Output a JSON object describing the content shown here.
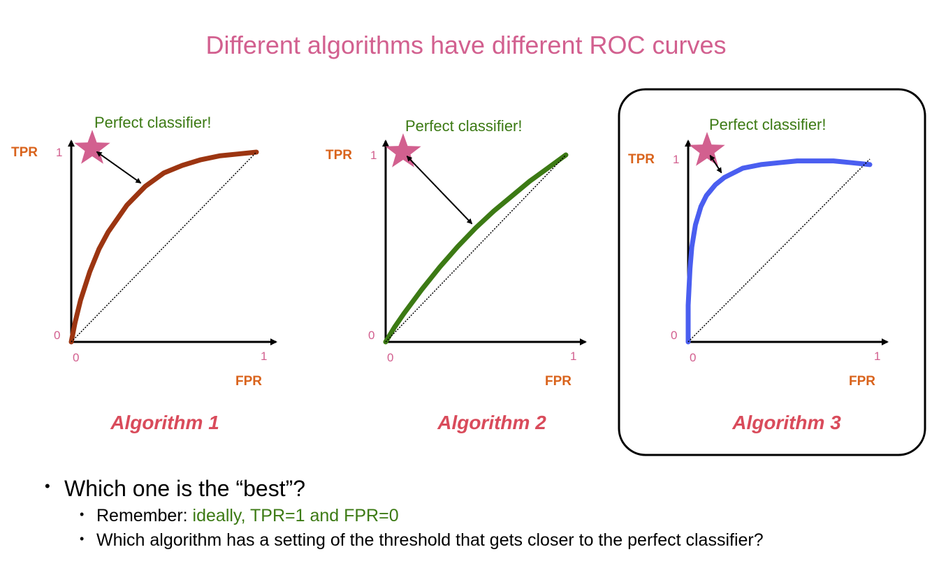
{
  "title": "Different algorithms have different ROC curves",
  "colors": {
    "title": "#d2608f",
    "axis_name": "#d9631c",
    "ticks": "#d2608f",
    "annotation": "#3c7a14",
    "caption": "#d94b5b",
    "star": "#d2608f"
  },
  "chart_data": [
    {
      "type": "line",
      "title": "Algorithm 1",
      "xlabel": "FPR",
      "ylabel": "TPR",
      "xlim": [
        0,
        1
      ],
      "ylim": [
        0,
        1
      ],
      "x_ticks": [
        "0",
        "1"
      ],
      "y_ticks": [
        "0",
        "1"
      ],
      "annotation": "Perfect classifier!",
      "highlighted": false,
      "series": [
        {
          "color": "#9c3511",
          "x": [
            0,
            0.02,
            0.05,
            0.1,
            0.15,
            0.2,
            0.3,
            0.4,
            0.5,
            0.6,
            0.7,
            0.8,
            0.9,
            1.0
          ],
          "y": [
            0,
            0.1,
            0.22,
            0.37,
            0.49,
            0.58,
            0.72,
            0.82,
            0.89,
            0.93,
            0.96,
            0.98,
            0.99,
            1.0
          ]
        },
        {
          "style": "dotted",
          "color": "#000000",
          "x": [
            0,
            1
          ],
          "y": [
            0,
            1
          ]
        }
      ]
    },
    {
      "type": "line",
      "title": "Algorithm 2",
      "xlabel": "FPR",
      "ylabel": "TPR",
      "xlim": [
        0,
        1
      ],
      "ylim": [
        0,
        1
      ],
      "x_ticks": [
        "0",
        "1"
      ],
      "y_ticks": [
        "0",
        "1"
      ],
      "annotation": "Perfect classifier!",
      "highlighted": false,
      "series": [
        {
          "color": "#3c7a14",
          "x": [
            0,
            0.05,
            0.1,
            0.2,
            0.3,
            0.4,
            0.5,
            0.6,
            0.7,
            0.8,
            0.9,
            1.0
          ],
          "y": [
            0,
            0.08,
            0.15,
            0.28,
            0.4,
            0.51,
            0.61,
            0.7,
            0.78,
            0.86,
            0.93,
            1.0
          ]
        },
        {
          "style": "dotted",
          "color": "#000000",
          "x": [
            0,
            1
          ],
          "y": [
            0,
            1
          ]
        }
      ]
    },
    {
      "type": "line",
      "title": "Algorithm 3",
      "xlabel": "FPR",
      "ylabel": "TPR",
      "xlim": [
        0,
        1
      ],
      "ylim": [
        0,
        1
      ],
      "x_ticks": [
        "0",
        "1"
      ],
      "y_ticks": [
        "0",
        "1"
      ],
      "annotation": "Perfect classifier!",
      "highlighted": true,
      "series": [
        {
          "color": "#4a5ef0",
          "x": [
            0,
            0.0,
            0.01,
            0.02,
            0.04,
            0.07,
            0.1,
            0.15,
            0.2,
            0.3,
            0.4,
            0.5,
            0.6,
            0.7,
            0.8,
            0.9,
            1.0
          ],
          "y": [
            0,
            0.2,
            0.4,
            0.52,
            0.64,
            0.74,
            0.8,
            0.86,
            0.9,
            0.95,
            0.97,
            0.98,
            0.99,
            0.99,
            0.99,
            0.98,
            0.97
          ]
        },
        {
          "style": "dotted",
          "color": "#000000",
          "x": [
            0,
            1
          ],
          "y": [
            0,
            1
          ]
        }
      ]
    }
  ],
  "bullets": {
    "main": "Which one is the “best”?",
    "sub1_prefix": "Remember: ",
    "sub1_highlight": "ideally, TPR=1 and FPR=0",
    "sub2": "Which algorithm has a setting of the threshold that gets closer to the perfect classifier?"
  }
}
